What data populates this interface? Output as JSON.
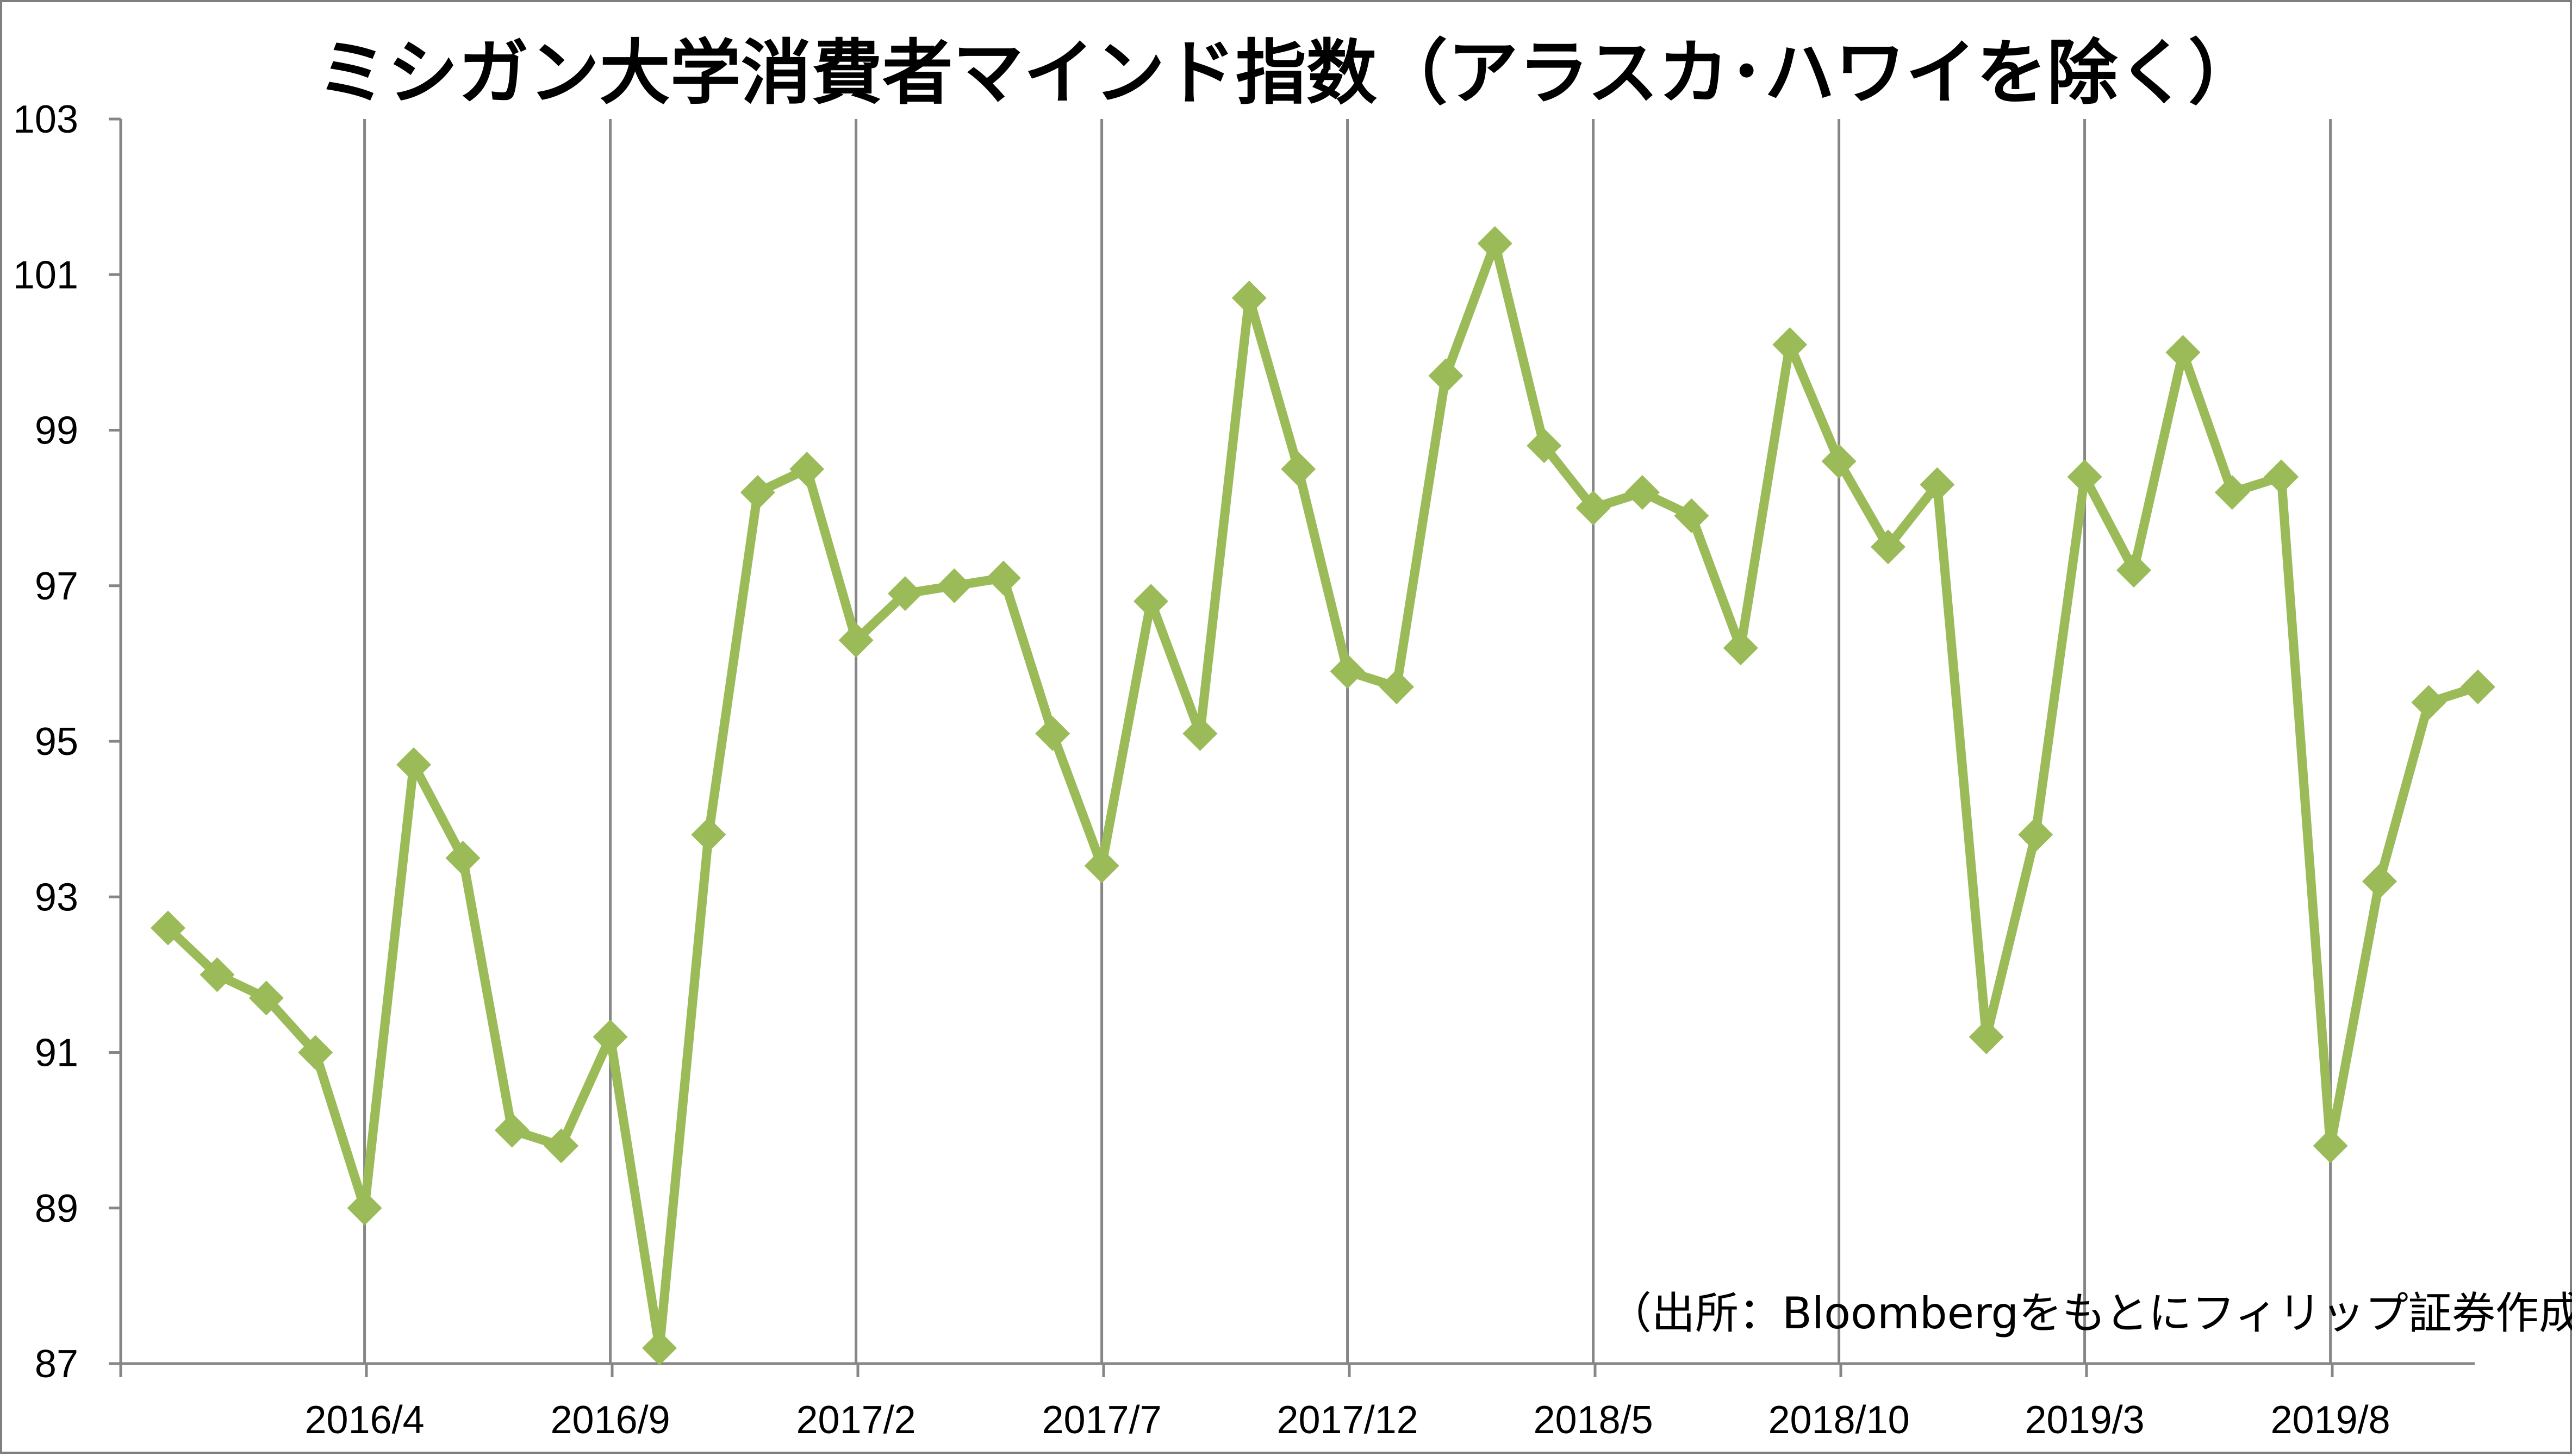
{
  "chart_data": {
    "type": "line",
    "title": "ミシガン大学消費者マインド指数（アラスカ･ハワイを除く）",
    "xlabel": "",
    "ylabel": "",
    "ylim": [
      87,
      103
    ],
    "yticks": [
      "103",
      "101",
      "99",
      "97",
      "95",
      "93",
      "91",
      "89",
      "87"
    ],
    "xticks": [
      "2016/4",
      "2016/9",
      "2017/2",
      "2017/7",
      "2017/12",
      "2018/5",
      "2018/10",
      "2019/3",
      "2019/8"
    ],
    "x": [
      "2015/12",
      "2016/1",
      "2016/2",
      "2016/3",
      "2016/4",
      "2016/5",
      "2016/6",
      "2016/7",
      "2016/8",
      "2016/9",
      "2016/10",
      "2016/11",
      "2016/12",
      "2017/1",
      "2017/2",
      "2017/3",
      "2017/4",
      "2017/5",
      "2017/6",
      "2017/7",
      "2017/8",
      "2017/9",
      "2017/10",
      "2017/11",
      "2017/12",
      "2018/1",
      "2018/2",
      "2018/3",
      "2018/4",
      "2018/5",
      "2018/6",
      "2018/7",
      "2018/8",
      "2018/9",
      "2018/10",
      "2018/11",
      "2018/12",
      "2019/1",
      "2019/2",
      "2019/3",
      "2019/4",
      "2019/5",
      "2019/6",
      "2019/7",
      "2019/8",
      "2019/9",
      "2019/10",
      "2019/11"
    ],
    "series": [
      {
        "values": [
          92.6,
          92.0,
          91.7,
          91.0,
          89.0,
          94.7,
          93.5,
          90.0,
          89.8,
          91.2,
          87.2,
          93.8,
          98.2,
          98.5,
          96.3,
          96.9,
          97.0,
          97.1,
          95.1,
          93.4,
          96.8,
          95.1,
          100.7,
          98.5,
          95.9,
          95.7,
          99.7,
          101.4,
          98.8,
          98.0,
          98.2,
          97.9,
          96.2,
          100.1,
          98.6,
          97.5,
          98.3,
          91.2,
          93.8,
          98.4,
          97.2,
          100.0,
          98.2,
          98.4,
          89.8,
          93.2,
          95.5,
          95.7
        ]
      }
    ],
    "grid": "vertical",
    "line_color": "#9bbb59",
    "grid_color": "#868686",
    "annotation": "（出所：Bloombergをもとにフィリップ証券作成）"
  }
}
